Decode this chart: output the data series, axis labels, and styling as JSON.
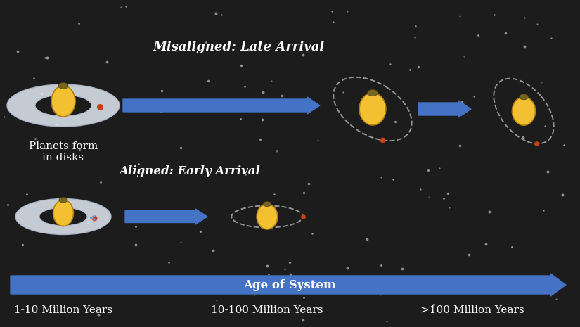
{
  "bg_color": "#1c1c1c",
  "star_color": "#cccccc",
  "title_misaligned": "Misaligned: Late Arrival",
  "title_aligned": "Aligned: Early Arrival",
  "label_planets": "Planets form\nin disks",
  "label_age": "Age of System",
  "label_t1": "1-10 Million Years",
  "label_t2": "10-100 Million Years",
  "label_t3": ">100 Million Years",
  "star_body_color": "#f2c030",
  "star_body_dark": "#b08010",
  "planet_color": "#c84010",
  "disk_color": "#d8dfe8",
  "disk_edge_color": "#b0b8c8",
  "arrow_color": "#4472c4",
  "orbit_color": "#aaaaaa",
  "text_color": "#ffffff",
  "n_stars": 130,
  "cap_color": "#7a6520",
  "cap_edge": "#4a4010"
}
